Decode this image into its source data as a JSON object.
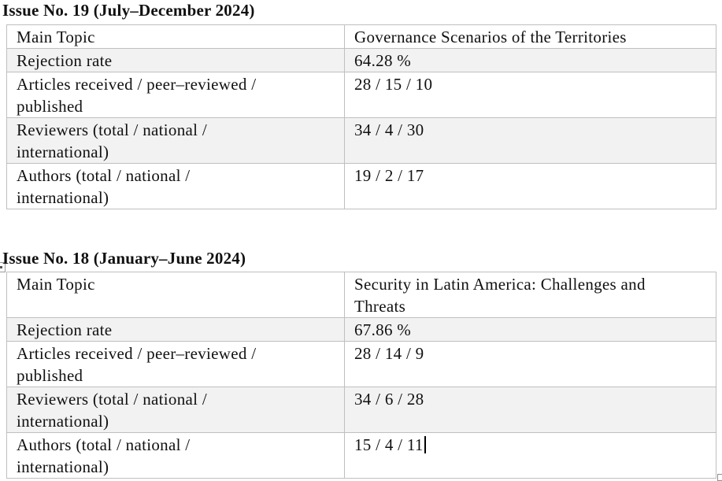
{
  "document": {
    "background": "#ffffff",
    "text_color": "#111111",
    "table_border_color": "#bfbfbf",
    "alt_row_background": "#f2f2f2"
  },
  "issues": [
    {
      "heading": "Issue No. 19 (July–December 2024)",
      "rows": [
        {
          "label_lines": [
            "Main Topic"
          ],
          "value_lines": [
            "Governance Scenarios of the Territories"
          ]
        },
        {
          "label_lines": [
            "Rejection rate"
          ],
          "value_lines": [
            "64.28 %"
          ]
        },
        {
          "label_lines": [
            "Articles received / peer–reviewed /",
            "published"
          ],
          "value_lines": [
            "28 / 15 / 10"
          ]
        },
        {
          "label_lines": [
            "Reviewers (total / national /",
            "international)"
          ],
          "value_lines": [
            "34 / 4 / 30"
          ]
        },
        {
          "label_lines": [
            "Authors (total / national /",
            "international)"
          ],
          "value_lines": [
            "19 / 2 / 17"
          ]
        }
      ]
    },
    {
      "heading": "Issue No. 18 (January–June 2024)",
      "rows": [
        {
          "label_lines": [
            "Main Topic"
          ],
          "value_lines": [
            "Security in Latin America: Challenges and",
            "Threats"
          ]
        },
        {
          "label_lines": [
            "Rejection rate"
          ],
          "value_lines": [
            "67.86 %"
          ]
        },
        {
          "label_lines": [
            "Articles received / peer–reviewed /",
            "published"
          ],
          "value_lines": [
            "28 / 14 / 9"
          ]
        },
        {
          "label_lines": [
            "Reviewers (total / national /",
            "international)"
          ],
          "value_lines": [
            "34 / 6 / 28"
          ]
        },
        {
          "label_lines": [
            "Authors (total / national /",
            "international)"
          ],
          "value_lines": [
            "15 / 4 / 11"
          ]
        }
      ]
    }
  ]
}
